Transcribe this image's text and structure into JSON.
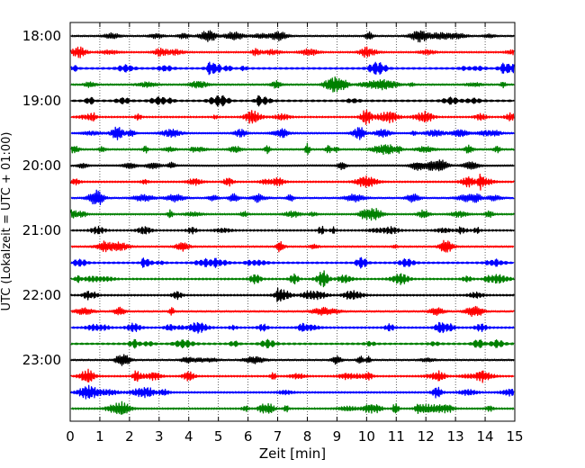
{
  "chart_data": {
    "type": "line",
    "title": "",
    "xlabel": "Zeit  [min]",
    "ylabel": "UTC (Lokalzeit = UTC + 01:00)",
    "xlim": [
      0,
      15
    ],
    "x_ticks": [
      "0",
      "1",
      "2",
      "3",
      "4",
      "5",
      "6",
      "7",
      "8",
      "9",
      "10",
      "11",
      "12",
      "13",
      "14",
      "15"
    ],
    "y_ticks": [
      "18:00",
      "19:00",
      "20:00",
      "21:00",
      "22:00",
      "23:00"
    ],
    "grid": "vertical dotted lines at each minute",
    "trace_count": 24,
    "trace_interval_min": 15,
    "trace_colors": [
      "#000000",
      "#ff0000",
      "#0000ff",
      "#008000"
    ],
    "first_trace_start": "18:00",
    "last_trace_start": "23:45"
  }
}
